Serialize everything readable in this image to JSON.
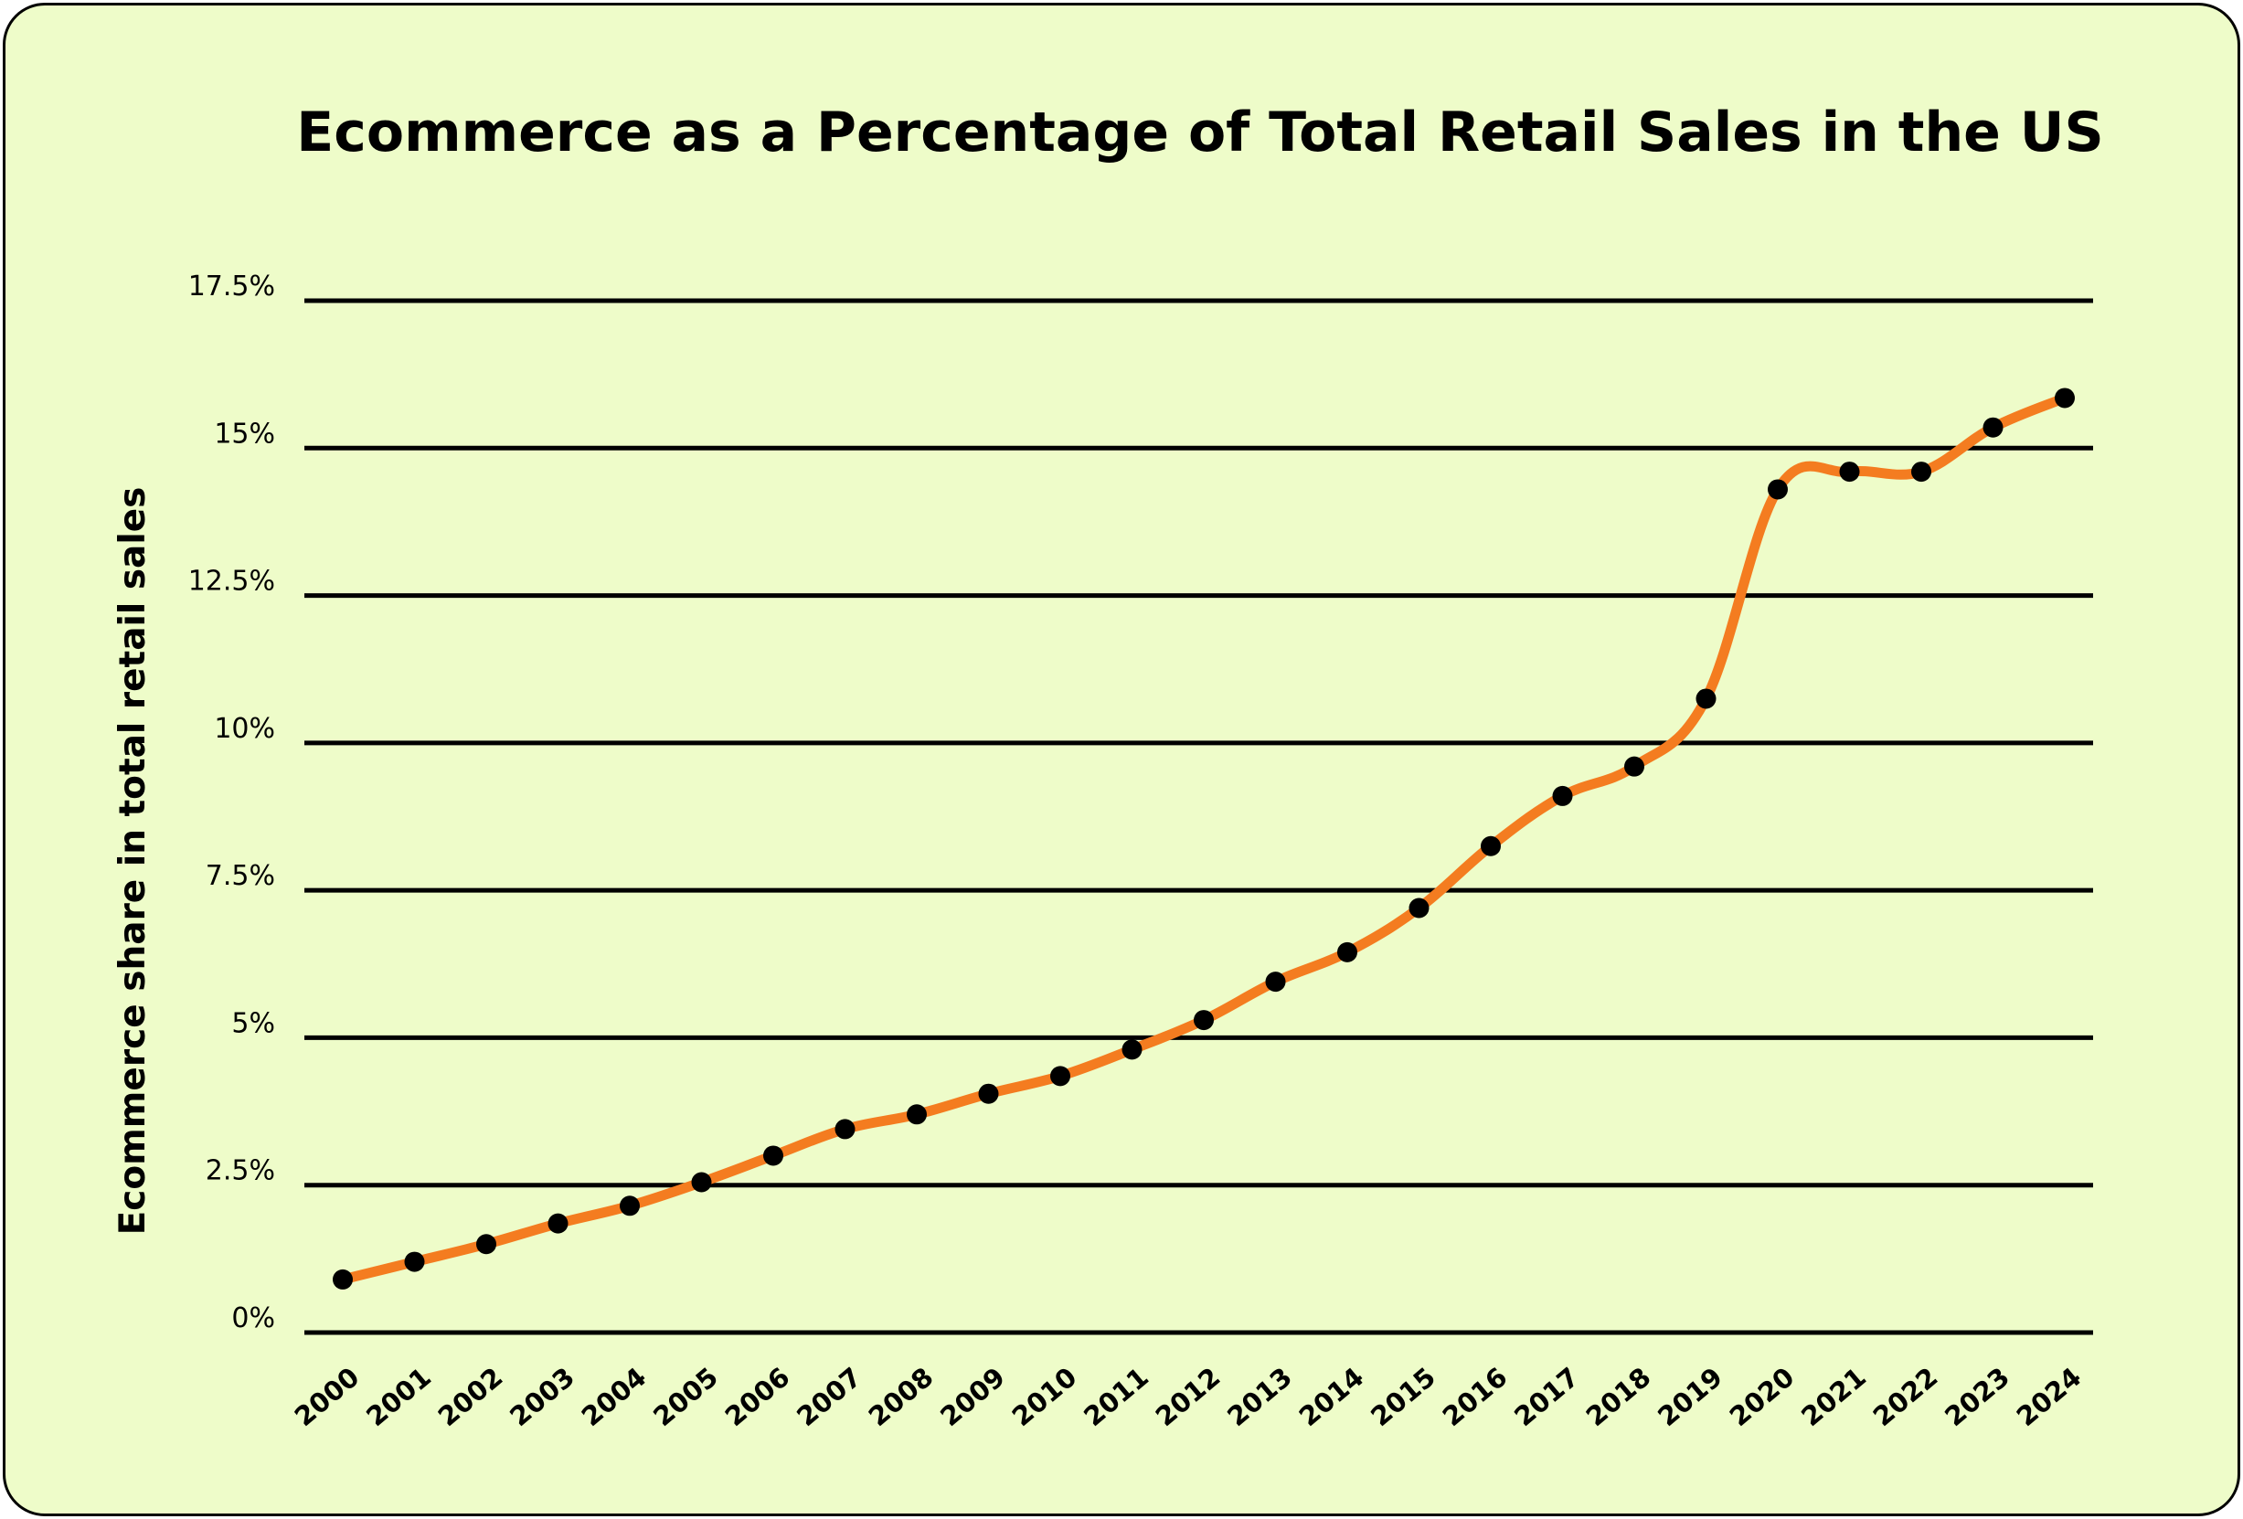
{
  "chart_data": {
    "type": "line",
    "title": "Ecommerce as a Percentage of Total Retail Sales in the US",
    "xlabel": "",
    "ylabel": "Ecommerce share in total retail sales",
    "ylim": [
      0,
      17.5
    ],
    "yticks": [
      0,
      2.5,
      5,
      7.5,
      10,
      12.5,
      15,
      17.5
    ],
    "ytick_labels": [
      "0%",
      "2.5%",
      "5%",
      "7.5%",
      "10%",
      "12.5%",
      "15%",
      "17.5%"
    ],
    "categories": [
      "2000",
      "2001",
      "2002",
      "2003",
      "2004",
      "2005",
      "2006",
      "2007",
      "2008",
      "2009",
      "2010",
      "2011",
      "2012",
      "2013",
      "2014",
      "2015",
      "2016",
      "2017",
      "2018",
      "2019",
      "2020",
      "2021",
      "2022",
      "2023",
      "2024"
    ],
    "series": [
      {
        "values": [
          0.9,
          1.2,
          1.5,
          1.85,
          2.15,
          2.55,
          3.0,
          3.45,
          3.7,
          4.05,
          4.35,
          4.8,
          5.3,
          5.95,
          6.45,
          7.2,
          8.25,
          9.1,
          9.6,
          10.75,
          14.3,
          14.6,
          14.6,
          15.35,
          15.85
        ],
        "color": "#f47c20"
      }
    ],
    "grid": true,
    "gridline_color": "#000000",
    "marker_color": "#000000",
    "background_color": "#eefcc9",
    "legend": "none"
  }
}
